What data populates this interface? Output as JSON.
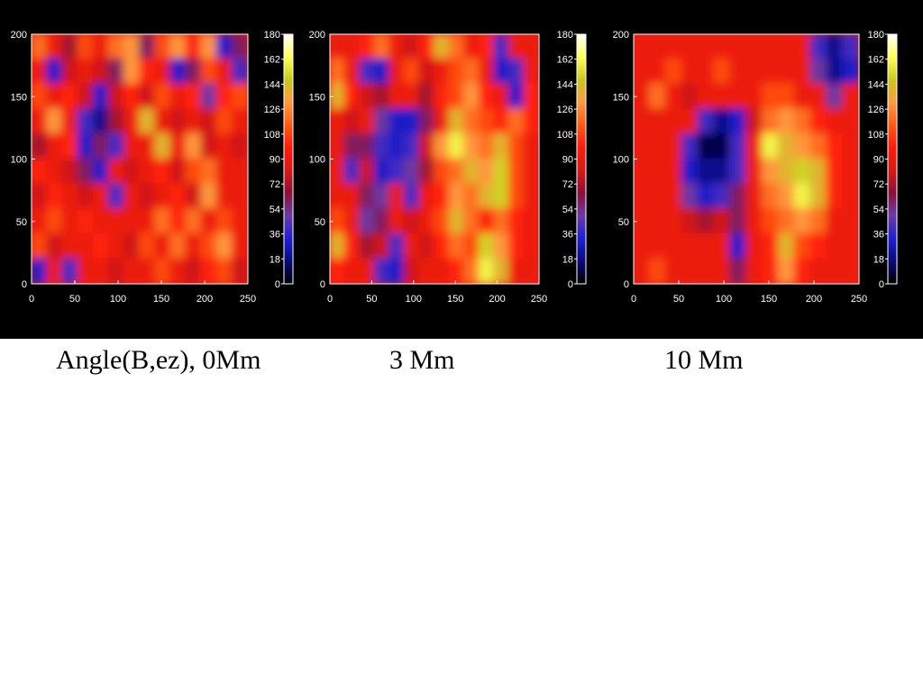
{
  "captions": [
    "Angle(B,ez), 0Mm",
    "3 Mm",
    "10 Mm"
  ],
  "colors": {
    "background_figure": "#000000",
    "background_page": "#ffffff",
    "colormap": [
      "#000000",
      "#0a0a7a",
      "#1f1fd6",
      "#6a3aa8",
      "#8c0f3a",
      "#d81a12",
      "#ff1a0a",
      "#ff5a14",
      "#ff9a40",
      "#c8c81e",
      "#ffff55",
      "#ffffff"
    ]
  },
  "chart_data": [
    {
      "type": "heatmap",
      "title": "",
      "xlabel": "",
      "ylabel": "",
      "xlim": [
        0,
        250
      ],
      "ylim": [
        0,
        200
      ],
      "xticks": [
        0,
        50,
        100,
        150,
        200,
        250
      ],
      "yticks": [
        0,
        50,
        100,
        150,
        200
      ],
      "colorbar": {
        "range": [
          0,
          180
        ],
        "ticks": [
          0,
          18,
          36,
          54,
          72,
          90,
          108,
          126,
          144,
          162,
          180
        ]
      },
      "values": [
        [
          120,
          90,
          70,
          110,
          90,
          120,
          130,
          60,
          110,
          130,
          100,
          130,
          30,
          60
        ],
        [
          90,
          30,
          80,
          90,
          80,
          60,
          130,
          100,
          90,
          30,
          60,
          110,
          90,
          40
        ],
        [
          110,
          90,
          100,
          80,
          30,
          80,
          100,
          80,
          110,
          90,
          100,
          50,
          100,
          110
        ],
        [
          90,
          130,
          90,
          40,
          20,
          70,
          90,
          140,
          90,
          80,
          90,
          80,
          110,
          90
        ],
        [
          70,
          90,
          100,
          30,
          60,
          40,
          90,
          90,
          140,
          90,
          130,
          80,
          90,
          80
        ],
        [
          100,
          90,
          80,
          60,
          30,
          90,
          80,
          90,
          100,
          80,
          110,
          120,
          90,
          90
        ],
        [
          80,
          100,
          90,
          80,
          90,
          40,
          90,
          80,
          90,
          100,
          80,
          130,
          90,
          90
        ],
        [
          90,
          110,
          90,
          100,
          90,
          90,
          90,
          90,
          120,
          100,
          120,
          90,
          110,
          90
        ],
        [
          110,
          80,
          90,
          90,
          100,
          90,
          80,
          110,
          90,
          120,
          90,
          110,
          130,
          90
        ],
        [
          30,
          90,
          40,
          90,
          90,
          80,
          90,
          90,
          110,
          90,
          80,
          100,
          110,
          80
        ]
      ]
    },
    {
      "type": "heatmap",
      "title": "",
      "xlabel": "",
      "ylabel": "",
      "xlim": [
        0,
        250
      ],
      "ylim": [
        0,
        200
      ],
      "xticks": [
        0,
        50,
        100,
        150,
        200,
        250
      ],
      "yticks": [
        0,
        50,
        100,
        150,
        200
      ],
      "colorbar": {
        "range": [
          0,
          180
        ],
        "ticks": [
          0,
          18,
          36,
          54,
          72,
          90,
          108,
          126,
          144,
          162,
          180
        ]
      },
      "values": [
        [
          90,
          90,
          100,
          120,
          90,
          80,
          100,
          140,
          120,
          90,
          100,
          40,
          90,
          90
        ],
        [
          120,
          90,
          40,
          30,
          90,
          110,
          80,
          90,
          110,
          120,
          90,
          30,
          40,
          90
        ],
        [
          140,
          100,
          80,
          70,
          90,
          90,
          70,
          100,
          110,
          130,
          100,
          90,
          30,
          100
        ],
        [
          90,
          80,
          90,
          50,
          30,
          30,
          60,
          90,
          140,
          120,
          110,
          100,
          120,
          100
        ],
        [
          90,
          60,
          60,
          40,
          30,
          40,
          80,
          130,
          160,
          130,
          120,
          140,
          110,
          90
        ],
        [
          90,
          40,
          80,
          30,
          40,
          50,
          70,
          110,
          120,
          140,
          130,
          150,
          110,
          90
        ],
        [
          90,
          90,
          60,
          50,
          90,
          40,
          90,
          100,
          130,
          120,
          140,
          150,
          110,
          90
        ],
        [
          110,
          90,
          50,
          60,
          90,
          80,
          90,
          110,
          140,
          120,
          100,
          120,
          100,
          90
        ],
        [
          140,
          100,
          70,
          80,
          40,
          90,
          80,
          100,
          120,
          110,
          150,
          130,
          100,
          90
        ],
        [
          100,
          90,
          90,
          40,
          30,
          80,
          90,
          90,
          100,
          120,
          160,
          140,
          90,
          90
        ]
      ]
    },
    {
      "type": "heatmap",
      "title": "",
      "xlabel": "",
      "ylabel": "",
      "xlim": [
        0,
        250
      ],
      "ylim": [
        0,
        200
      ],
      "xticks": [
        0,
        50,
        100,
        150,
        200,
        250
      ],
      "yticks": [
        0,
        50,
        100,
        150,
        200
      ],
      "colorbar": {
        "range": [
          0,
          180
        ],
        "ticks": [
          0,
          18,
          36,
          54,
          72,
          90,
          108,
          126,
          144,
          162,
          180
        ]
      },
      "values": [
        [
          90,
          90,
          90,
          90,
          90,
          90,
          90,
          90,
          90,
          90,
          90,
          40,
          20,
          40
        ],
        [
          90,
          90,
          110,
          90,
          90,
          110,
          90,
          90,
          90,
          90,
          90,
          50,
          20,
          30
        ],
        [
          90,
          120,
          90,
          80,
          90,
          90,
          90,
          90,
          110,
          110,
          90,
          90,
          50,
          90
        ],
        [
          90,
          90,
          90,
          90,
          40,
          20,
          30,
          80,
          120,
          130,
          120,
          100,
          90,
          90
        ],
        [
          90,
          90,
          90,
          40,
          10,
          10,
          40,
          90,
          160,
          140,
          130,
          120,
          100,
          90
        ],
        [
          90,
          90,
          90,
          30,
          20,
          20,
          40,
          90,
          130,
          140,
          150,
          140,
          100,
          90
        ],
        [
          90,
          90,
          90,
          50,
          30,
          40,
          60,
          90,
          120,
          130,
          160,
          140,
          100,
          90
        ],
        [
          90,
          90,
          90,
          80,
          70,
          80,
          60,
          90,
          110,
          120,
          130,
          120,
          90,
          90
        ],
        [
          90,
          90,
          90,
          90,
          90,
          90,
          30,
          90,
          100,
          140,
          110,
          100,
          90,
          90
        ],
        [
          90,
          110,
          90,
          90,
          90,
          90,
          60,
          90,
          100,
          130,
          100,
          90,
          90,
          90
        ]
      ]
    }
  ]
}
